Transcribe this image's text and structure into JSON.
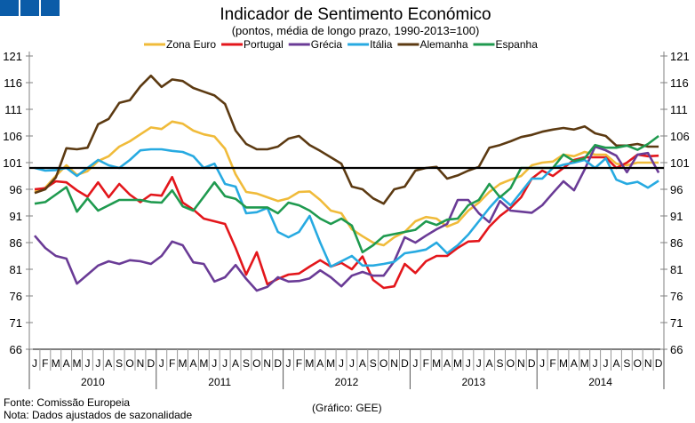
{
  "header": {
    "logo_color": "#0b5ca8"
  },
  "footer": {
    "source": "Fonte: Comissão Europeia",
    "note": "Nota: Dados ajustados de sazonalidade",
    "credit": "(Gráfico: GEE)"
  },
  "chart_data": {
    "type": "line",
    "title": "Indicador de Sentimento Económico",
    "subtitle": "(pontos, média de longo prazo, 1990-2013=100)",
    "xlabel": "",
    "ylabel": "",
    "ylim": [
      66,
      121
    ],
    "yticks": [
      121,
      116,
      111,
      106,
      101,
      96,
      91,
      86,
      81,
      76,
      71,
      66
    ],
    "reference_line": 100,
    "legend_position": "top",
    "years": [
      "2010",
      "2011",
      "2012",
      "2013",
      "2014"
    ],
    "month_labels": [
      "J",
      "F",
      "M",
      "A",
      "M",
      "J",
      "J",
      "A",
      "S",
      "O",
      "N",
      "D"
    ],
    "series": [
      {
        "name": "Zona Euro",
        "color": "#f0bb3a",
        "values": [
          95.5,
          96.3,
          98.5,
          100.5,
          98.7,
          99.4,
          101.3,
          102.2,
          104,
          105,
          106.3,
          107.6,
          107.3,
          108.7,
          108.3,
          107,
          106.3,
          105.9,
          103.6,
          98.8,
          95.5,
          95.2,
          94.5,
          93.8,
          94.3,
          95.5,
          95.6,
          94,
          92,
          91.5,
          88.5,
          87.2,
          86,
          85.5,
          87,
          88,
          90,
          90.8,
          90.5,
          89,
          89.8,
          92,
          93.5,
          95.5,
          97,
          97.8,
          98.5,
          100.5,
          101,
          101.2,
          102.5,
          102.2,
          103,
          102.5,
          102.5,
          100.8,
          100.5,
          101,
          101,
          101
        ]
      },
      {
        "name": "Portugal",
        "color": "#e3161b",
        "values": [
          96,
          96.2,
          97.5,
          97.3,
          95.8,
          94.6,
          97.3,
          94.5,
          97,
          95,
          93.6,
          95,
          94.8,
          98.3,
          93.5,
          92.2,
          90.5,
          90,
          89.5,
          85,
          80,
          84.2,
          78.2,
          79.2,
          80,
          80.2,
          81.5,
          82.7,
          81.5,
          82.2,
          81,
          83.4,
          79,
          77.5,
          77.8,
          82,
          80.3,
          82.5,
          83.5,
          83.5,
          85,
          86.2,
          86.3,
          89,
          91,
          92.5,
          94.5,
          98,
          99.5,
          98.5,
          100,
          101.5,
          102,
          102,
          102,
          100,
          101,
          102.5,
          102.2,
          102.3
        ]
      },
      {
        "name": "Grécia",
        "color": "#6a3b96",
        "values": [
          87.3,
          85,
          83.5,
          83,
          78.3,
          80,
          81.7,
          82.5,
          82,
          82.7,
          82.5,
          82,
          83.5,
          86.2,
          85.5,
          82.3,
          82,
          78.7,
          79.5,
          81.8,
          79.2,
          77,
          77.7,
          79.5,
          78.7,
          78.8,
          79.3,
          80.8,
          79.5,
          77.8,
          79.8,
          80.5,
          79.8,
          79.8,
          82.5,
          87,
          86,
          87.3,
          88.5,
          89.5,
          94,
          94,
          91.5,
          89.8,
          93.8,
          92,
          91.8,
          91.6,
          93,
          95.3,
          97.5,
          95.8,
          99.7,
          104,
          103.3,
          102.3,
          99.2,
          102.5,
          102.8,
          99.1
        ]
      },
      {
        "name": "Itália",
        "color": "#27aae1",
        "values": [
          100,
          99.5,
          99.6,
          100,
          98.5,
          100,
          101.5,
          100.5,
          100,
          101.5,
          103.3,
          103.5,
          103.5,
          103.2,
          103,
          102.2,
          100,
          100.8,
          97,
          96.5,
          91.5,
          91.7,
          92.5,
          88,
          87,
          88,
          91,
          86,
          81.5,
          82.5,
          83.5,
          81.7,
          81.7,
          82,
          82.4,
          84,
          84.3,
          84.7,
          86,
          84,
          85.5,
          87.5,
          90,
          92.5,
          94.7,
          93,
          95.5,
          98,
          98,
          100,
          100.6,
          101,
          101.5,
          100,
          101.8,
          97.8,
          97,
          97.4,
          96.3,
          97.6
        ]
      },
      {
        "name": "Alemanha",
        "color": "#5c3a12",
        "values": [
          95.3,
          96,
          98.2,
          103.7,
          103.5,
          103.8,
          108.2,
          109.2,
          112.2,
          112.7,
          115.3,
          117.3,
          115.2,
          116.6,
          116.3,
          115,
          114.3,
          113.6,
          112,
          107,
          104.5,
          103.5,
          103.5,
          104,
          105.5,
          106,
          104.3,
          103.2,
          102,
          100.8,
          96.5,
          96,
          94.3,
          93.3,
          96,
          96.5,
          99.5,
          100,
          100.2,
          98,
          98.6,
          99.5,
          100.2,
          103.8,
          104.3,
          105,
          105.8,
          106.2,
          106.8,
          107.2,
          107.5,
          107.2,
          107.8,
          106.5,
          106,
          104.2,
          104.2,
          104.5,
          104,
          104
        ]
      },
      {
        "name": "Espanha",
        "color": "#1f9a4f",
        "values": [
          93.3,
          93.6,
          95,
          96.4,
          91.8,
          94.3,
          92,
          93,
          94,
          94,
          94,
          93.6,
          93.5,
          95.8,
          92.8,
          92,
          94.6,
          97.3,
          94.7,
          94.2,
          92.6,
          92.6,
          92.6,
          91.5,
          93.5,
          93,
          92,
          90.5,
          89.5,
          90.5,
          89.2,
          84.2,
          85.5,
          87.2,
          87.6,
          88,
          88.4,
          90,
          89.3,
          90.3,
          90.5,
          93,
          94,
          97,
          94.5,
          96.2,
          100,
          100,
          100,
          100,
          102.5,
          101.3,
          101.8,
          104.3,
          103.8,
          103.8,
          104.2,
          103.4,
          104.5,
          106
        ]
      }
    ]
  }
}
